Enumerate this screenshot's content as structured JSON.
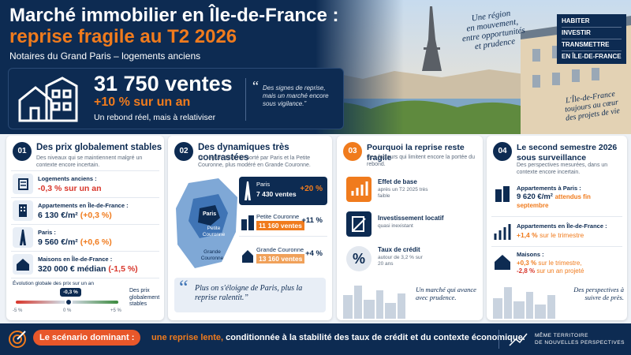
{
  "header": {
    "title_line1": "Marché immobilier en Île-de-France :",
    "title_line2": "reprise fragile au T2 2026",
    "subtitle": "Notaires du Grand Paris – logements anciens",
    "tagline": [
      "Une région",
      "en mouvement,",
      "entre opportunités",
      "et prudence"
    ],
    "badge": [
      "HABITER",
      "INVESTIR",
      "TRANSMETTRE",
      "EN ÎLE-DE-FRANCE"
    ],
    "caption": [
      "L'Île-de-France",
      "toujours au cœur",
      "des projets de vie"
    ]
  },
  "kpi": {
    "sales": "31 750 ventes",
    "growth": "+10 % sur un an",
    "note": "Un rebond réel, mais à relativiser",
    "quote": "Des signes de reprise, mais un marché encore sous vigilance.”"
  },
  "cards": [
    {
      "number": "01",
      "title": "Des prix globalement stables",
      "description": "Des niveaux qui se maintiennent malgré un contexte encore incertain.",
      "items": [
        {
          "label": "Logements anciens :",
          "value": "-0,3 % sur un an"
        },
        {
          "label": "Appartements en Île-de-France :",
          "value": "6 130 €/m²",
          "change": "(+0,3 %)"
        },
        {
          "label": "Paris :",
          "value": "9 560 €/m²",
          "change": "(+0,6 %)"
        },
        {
          "label": "Maisons en Île-de-France :",
          "value": "320 000 € médian",
          "change": "(-1,5 %)"
        }
      ],
      "gauge": {
        "title": "Évolution globale des prix sur un an",
        "marker": "-0,3 %",
        "ticks": [
          "-5 %",
          "0 %",
          "+5 %"
        ],
        "note": "Des prix globalement stables"
      }
    },
    {
      "number": "02",
      "title": "Des dynamiques très contrastées",
      "description": "Un regain d'activité porté par Paris et la Petite Couronne, plus modéré en Grande Couronne.",
      "map_labels": [
        "Paris",
        "Petite Couronne",
        "Grande Couronne"
      ],
      "items": [
        {
          "label": "Paris",
          "value": "7 430 ventes",
          "change": "+20 %"
        },
        {
          "label": "Petite Couronne",
          "value": "11 160 ventes",
          "change": "+11 %"
        },
        {
          "label": "Grande Couronne",
          "value": "13 160 ventes",
          "change": "+4 %"
        }
      ],
      "quote": "Plus on s'éloigne de Paris, plus la reprise ralentit.”"
    },
    {
      "number": "03",
      "title": "Pourquoi la reprise reste fragile",
      "description": "Des facteurs qui limitent encore la portée du rebond.",
      "items": [
        {
          "label": "Effet de base",
          "detail": "après un T2 2025 très faible"
        },
        {
          "label": "Investissement locatif",
          "detail": "quasi inexistant"
        },
        {
          "label": "Taux de crédit",
          "detail": "autour de 3,2 % sur 20 ans"
        }
      ],
      "icon_text": "%",
      "note": "Un marché qui avance avec prudence."
    },
    {
      "number": "04",
      "title": "Le second semestre 2026 sous surveillance",
      "description": "Des perspectives mesurées, dans un contexte encore incertain.",
      "items": [
        {
          "label": "Appartements à Paris :",
          "value": "9 620 €/m²",
          "detail": "attendus fin septembre"
        },
        {
          "label": "Appartements en Île-de-France :",
          "value": "+1,4 %",
          "detail": "sur le trimestre"
        },
        {
          "label": "Maisons :",
          "value": "+0,3 %",
          "detail": "sur le trimestre,",
          "value2": "-2,8 %",
          "detail2": "sur un an projeté"
        }
      ],
      "note": "Des perspectives à suivre de près."
    }
  ],
  "footer": {
    "label": "Le scénario dominant :",
    "highlight": "une reprise lente,",
    "text": "conditionnée à la stabilité des taux de crédit et du contexte économique.",
    "tagline": [
      "MÊME TERRITOIRE",
      "DE NOUVELLES PERSPECTIVES"
    ]
  }
}
